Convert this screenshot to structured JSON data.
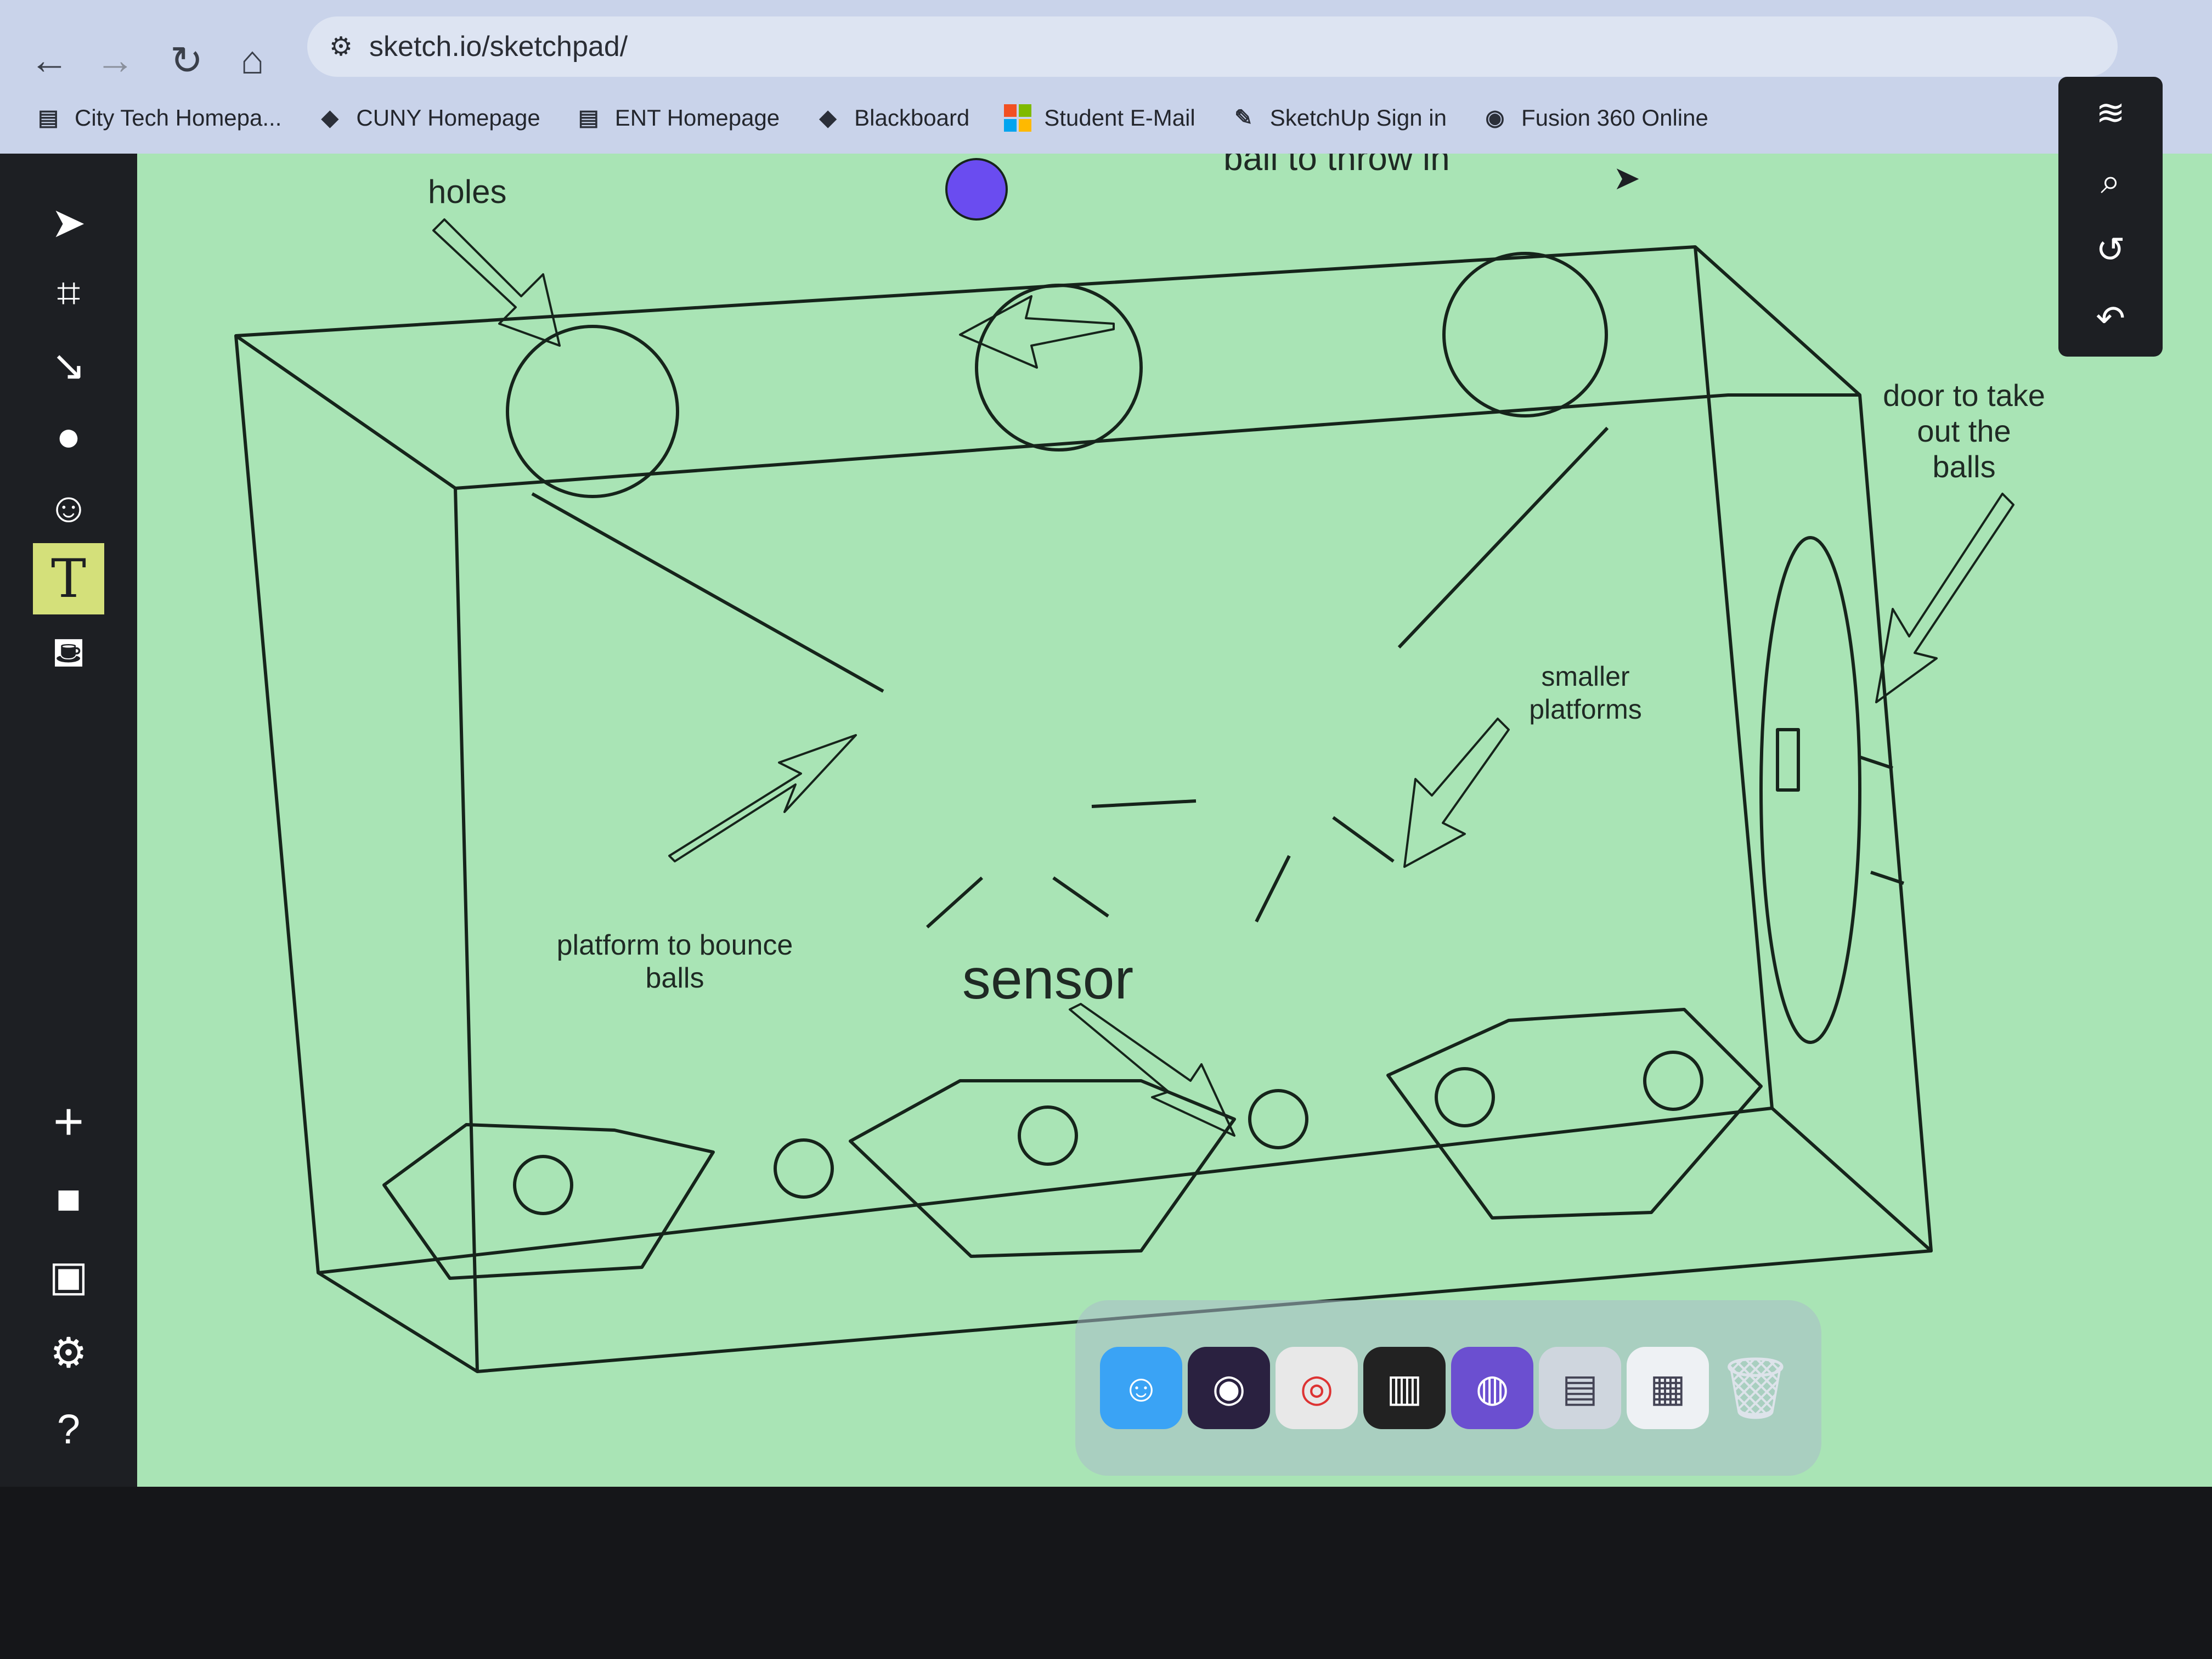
{
  "browser": {
    "url": "sketch.io/sketchpad/",
    "bookmarks": [
      {
        "label": "City Tech Homepa...",
        "icon": "page-icon"
      },
      {
        "label": "CUNY Homepage",
        "icon": "cuny-logo-icon"
      },
      {
        "label": "ENT Homepage",
        "icon": "page-icon"
      },
      {
        "label": "Blackboard",
        "icon": "cuny-logo-icon"
      },
      {
        "label": "Student E-Mail",
        "icon": "microsoft-logo-icon"
      },
      {
        "label": "SketchUp Sign in",
        "icon": "sketchup-logo-icon"
      },
      {
        "label": "Fusion 360 Online",
        "icon": "globe-icon"
      }
    ]
  },
  "sketch": {
    "labels": {
      "holes": "holes",
      "ball": "ball to throw in",
      "door_line1": "door to take",
      "door_line2": "out the",
      "door_line3": "balls",
      "smaller_line1": "smaller",
      "smaller_line2": "platforms",
      "platform_line1": "platform to bounce",
      "platform_line2": "balls",
      "sensor": "sensor"
    },
    "ball_color": "#6a4cf0"
  },
  "colors": {
    "canvas_bg": "#a9e4b5",
    "toolbar_bg": "#1d1f23",
    "active_tool": "#d4e07a"
  }
}
